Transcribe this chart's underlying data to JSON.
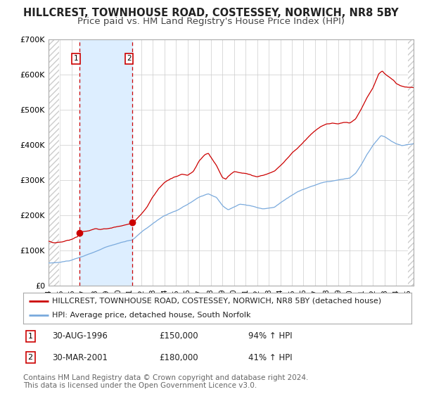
{
  "title": "HILLCREST, TOWNHOUSE ROAD, COSTESSEY, NORWICH, NR8 5BY",
  "subtitle": "Price paid vs. HM Land Registry's House Price Index (HPI)",
  "legend_line1": "HILLCREST, TOWNHOUSE ROAD, COSTESSEY, NORWICH, NR8 5BY (detached house)",
  "legend_line2": "HPI: Average price, detached house, South Norfolk",
  "sale1_label": "1",
  "sale1_date": "30-AUG-1996",
  "sale1_price": "£150,000",
  "sale1_hpi": "94% ↑ HPI",
  "sale2_label": "2",
  "sale2_date": "30-MAR-2001",
  "sale2_price": "£180,000",
  "sale2_hpi": "41% ↑ HPI",
  "footer1": "Contains HM Land Registry data © Crown copyright and database right 2024.",
  "footer2": "This data is licensed under the Open Government Licence v3.0.",
  "xmin": 1994.0,
  "xmax": 2025.5,
  "ymin": 0,
  "ymax": 700000,
  "sale1_x": 1996.667,
  "sale2_x": 2001.25,
  "red_line_color": "#cc0000",
  "blue_line_color": "#7aaadd",
  "shaded_region_color": "#ddeeff",
  "grid_color": "#cccccc",
  "hatch_color": "#cccccc",
  "title_fontsize": 10.5,
  "subtitle_fontsize": 9.5,
  "tick_fontsize": 7,
  "ytick_fontsize": 8,
  "legend_fontsize": 8,
  "footer_fontsize": 7.5
}
